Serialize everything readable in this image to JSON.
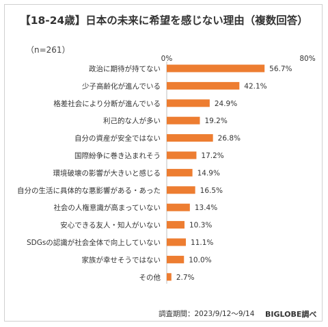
{
  "title": "【18-24歳】日本の未来に希望を感じない理由（複数回答）",
  "sample_note": "（n=261）",
  "footer": {
    "period": "調査期間：2023/9/12～9/14",
    "brand": "BIGLOBE調べ"
  },
  "colors": {
    "bar": "#ED7D31",
    "axis": "#BFBFBF",
    "text": "#333333"
  },
  "chart_data": {
    "type": "bar",
    "orientation": "horizontal",
    "title": "【18-24歳】日本の未来に希望を感じない理由（複数回答）",
    "xlabel": "",
    "ylabel": "",
    "xlim": [
      0,
      80
    ],
    "tick_labels": [
      "0%",
      "80%"
    ],
    "categories": [
      "政治に期待が持てない",
      "少子高齢化が進んでいる",
      "格差社会により分断が進んでいる",
      "利己的な人が多い",
      "自分の資産が安全ではない",
      "国際紛争に巻き込まれそう",
      "環境破壊の影響が大きいと感じる",
      "自分の生活に具体的な悪影響がある・あった",
      "社会の人権意識が高まっていない",
      "安心できる友人・知人がいない",
      "SDGsの認識が社会全体で向上していない",
      "家族が幸せそうではない",
      "その他"
    ],
    "values": [
      56.7,
      42.1,
      24.9,
      19.2,
      26.8,
      17.2,
      14.9,
      16.5,
      13.4,
      10.3,
      11.1,
      10.0,
      2.7
    ],
    "value_labels": [
      "56.7%",
      "42.1%",
      "24.9%",
      "19.2%",
      "26.8%",
      "17.2%",
      "14.9%",
      "16.5%",
      "13.4%",
      "10.3%",
      "11.1%",
      "10.0%",
      "2.7%"
    ],
    "grid": false,
    "legend": "none"
  }
}
